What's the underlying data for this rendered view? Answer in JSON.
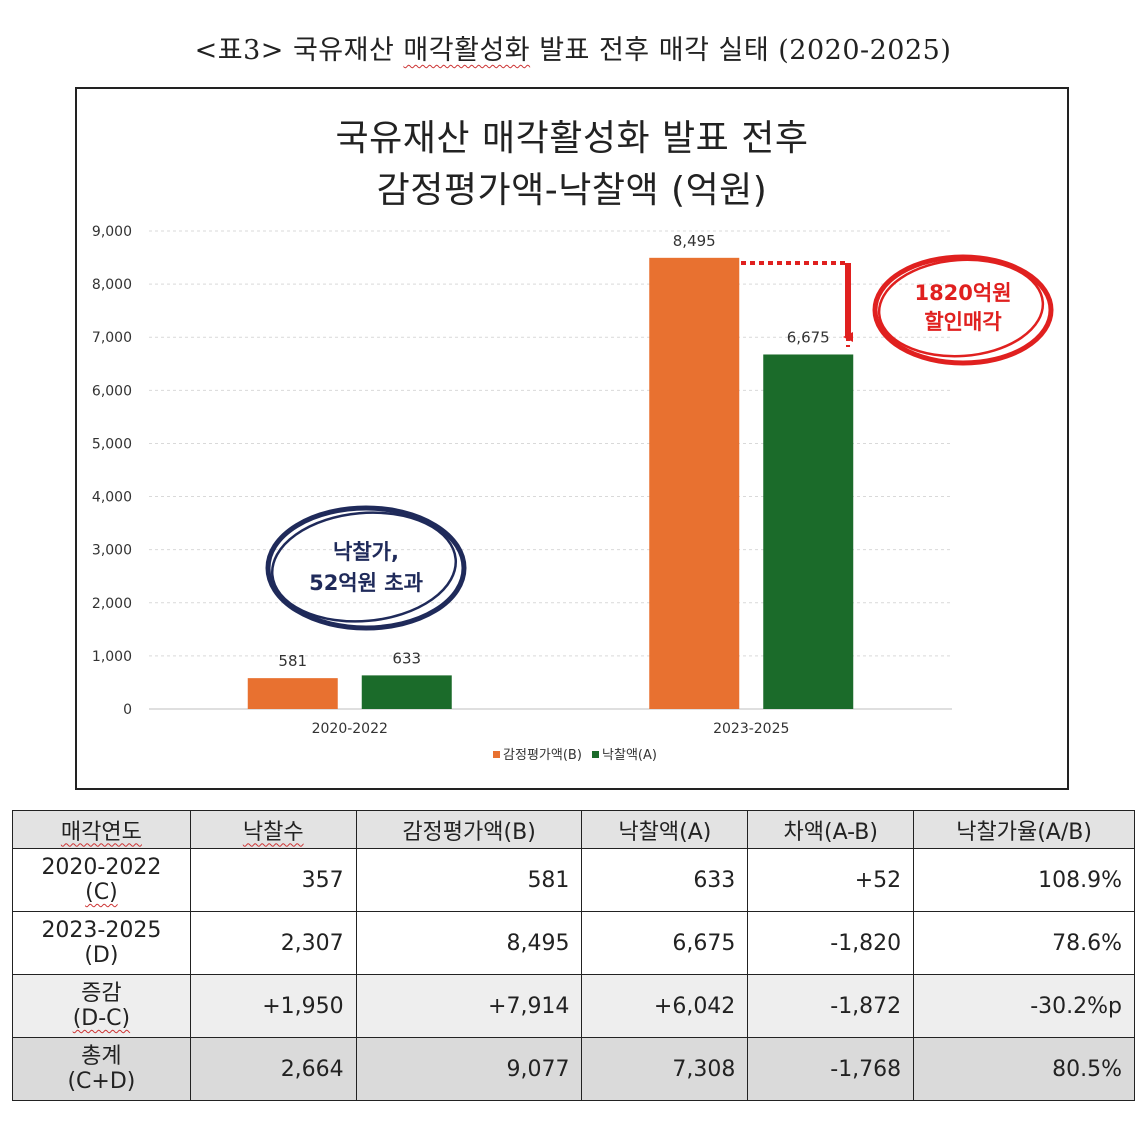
{
  "caption": {
    "prefix": "<표3> 국유재산 ",
    "underlined": "매각활성화",
    "suffix": " 발표 전후 매각 실태 (2020-2025)"
  },
  "chart_data": {
    "type": "bar",
    "title_line1": "국유재산 매각활성화 발표 전후",
    "title_line2": "감정평가액-낙찰액 (억원)",
    "categories": [
      "2020-2022",
      "2023-2025"
    ],
    "series": [
      {
        "name": "감정평가액(B)",
        "values": [
          581,
          8495
        ],
        "labels": [
          "581",
          "8,495"
        ],
        "color": "#e87130"
      },
      {
        "name": "낙찰액(A)",
        "values": [
          633,
          6675
        ],
        "labels": [
          "633",
          "6,675"
        ],
        "color": "#1b6b2a"
      }
    ],
    "ylim": [
      0,
      9000
    ],
    "yticks": [
      "0",
      "1,000",
      "2,000",
      "3,000",
      "4,000",
      "5,000",
      "6,000",
      "7,000",
      "8,000",
      "9,000"
    ],
    "grid": true,
    "legend_position": "bottom",
    "annotations": {
      "red_line1": "1820억원",
      "red_line2": "할인매각",
      "blue_line1": "낙찰가,",
      "blue_line2": "52억원 초과"
    }
  },
  "table": {
    "headers": [
      "매각연도",
      "낙찰수",
      "감정평가액(B)",
      "낙찰액(A)",
      "차액(A-B)",
      "낙찰가율(A/B)"
    ],
    "rows": [
      {
        "label1": "2020-2022",
        "label2": "(C)",
        "cells": [
          "357",
          "581",
          "633",
          "+52",
          "108.9%"
        ]
      },
      {
        "label1": "2023-2025",
        "label2": "(D)",
        "cells": [
          "2,307",
          "8,495",
          "6,675",
          "-1,820",
          "78.6%"
        ]
      },
      {
        "label1": "증감",
        "label2": "(D-C)",
        "cells": [
          "+1,950",
          "+7,914",
          "+6,042",
          "-1,872",
          "-30.2%p"
        ]
      },
      {
        "label1": "총계",
        "label2": "(C+D)",
        "cells": [
          "2,664",
          "9,077",
          "7,308",
          "-1,768",
          "80.5%"
        ]
      }
    ]
  }
}
